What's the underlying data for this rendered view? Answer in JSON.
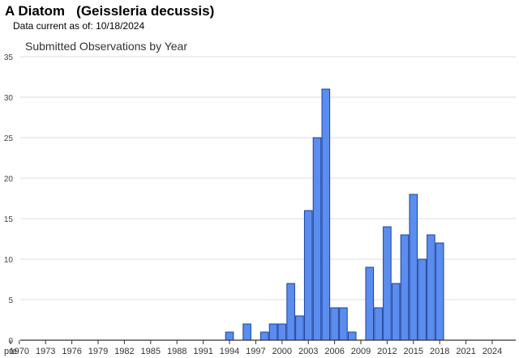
{
  "header": {
    "common_name": "A Diatom",
    "scientific_name": "(Geissleria decussis)",
    "data_current_label": "Data current as of:",
    "data_current_date": "10/18/2024"
  },
  "chart_data": {
    "type": "bar",
    "title": "Submitted Observations by Year",
    "xlabel": "",
    "ylabel": "",
    "ylim": [
      0,
      35
    ],
    "yticks": [
      0,
      5,
      10,
      15,
      20,
      25,
      30,
      35
    ],
    "grid": true,
    "legend": "none",
    "colors": {
      "bar_fill": "#5b8def",
      "bar_stroke": "#1a3f9c",
      "grid": "#dddddd",
      "axis": "#333333"
    },
    "categories": [
      "pre",
      "1970",
      "1971",
      "1972",
      "1973",
      "1974",
      "1975",
      "1976",
      "1977",
      "1978",
      "1979",
      "1980",
      "1981",
      "1982",
      "1983",
      "1984",
      "1985",
      "1986",
      "1987",
      "1988",
      "1989",
      "1990",
      "1991",
      "1992",
      "1993",
      "1994",
      "1995",
      "1996",
      "1997",
      "1998",
      "1999",
      "2000",
      "2001",
      "2002",
      "2003",
      "2004",
      "2005",
      "2006",
      "2007",
      "2008",
      "2009",
      "2010",
      "2011",
      "2012",
      "2013",
      "2014",
      "2015",
      "2016",
      "2017",
      "2018",
      "2019",
      "2020",
      "2021",
      "2022",
      "2023",
      "2024"
    ],
    "values": [
      0,
      0,
      0,
      0,
      0,
      0,
      0,
      0,
      0,
      0,
      0,
      0,
      0,
      0,
      0,
      0,
      0,
      0,
      0,
      0,
      0,
      0,
      0,
      0,
      0,
      1,
      0,
      2,
      0,
      1,
      2,
      2,
      7,
      3,
      16,
      25,
      31,
      4,
      4,
      1,
      0,
      9,
      4,
      14,
      7,
      13,
      18,
      10,
      13,
      12,
      0,
      0,
      0,
      0,
      0,
      0
    ],
    "x_tick_labels": [
      "pre",
      "1970",
      "1973",
      "1976",
      "1979",
      "1982",
      "1985",
      "1988",
      "1991",
      "1994",
      "1997",
      "2000",
      "2003",
      "2006",
      "2009",
      "2012",
      "2015",
      "2018",
      "2021",
      "2024"
    ]
  }
}
